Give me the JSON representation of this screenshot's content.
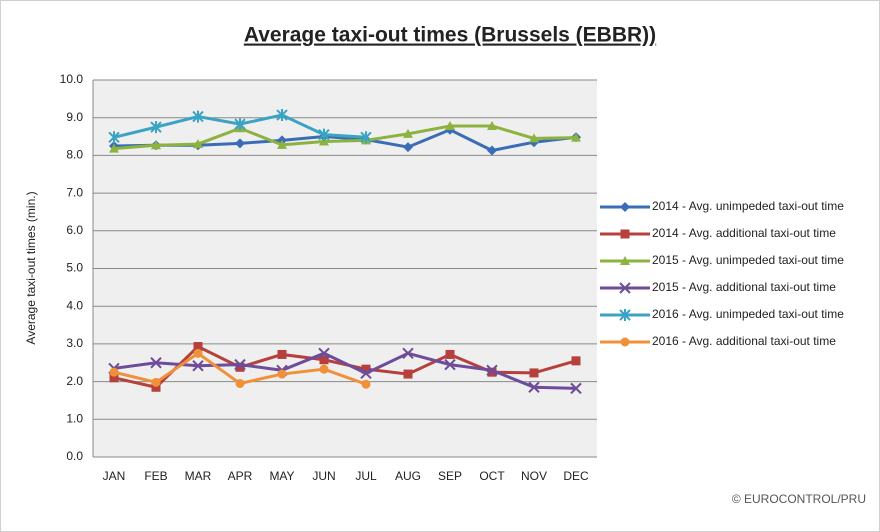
{
  "chart_data": {
    "type": "line",
    "title": "Average taxi-out times (Brussels (EBBR))",
    "y_label": "Average taxi-out times (min.)",
    "source": "© EUROCONTROL/PRU",
    "categories": [
      "JAN",
      "FEB",
      "MAR",
      "APR",
      "MAY",
      "JUN",
      "JUL",
      "AUG",
      "SEP",
      "OCT",
      "NOV",
      "DEC"
    ],
    "ylim": [
      0,
      10
    ],
    "yticks": [
      {
        "value": 0,
        "label": "0.0"
      },
      {
        "value": 1,
        "label": "1.0"
      },
      {
        "value": 2,
        "label": "2.0"
      },
      {
        "value": 3,
        "label": "3.0"
      },
      {
        "value": 4,
        "label": "4.0"
      },
      {
        "value": 5,
        "label": "5.0"
      },
      {
        "value": 6,
        "label": "6.0"
      },
      {
        "value": 7,
        "label": "7.0"
      },
      {
        "value": 8,
        "label": "8.0"
      },
      {
        "value": 9,
        "label": "9.0"
      },
      {
        "value": 10,
        "label": "10.0"
      }
    ],
    "grid": true,
    "legend": "right",
    "series": [
      {
        "name": "2014 - Avg. unimpeded taxi-out time",
        "color": "#3a6db5",
        "marker": "diamond",
        "values": [
          8.25,
          8.27,
          8.27,
          8.32,
          8.4,
          8.5,
          8.42,
          8.22,
          8.68,
          8.13,
          8.35,
          8.48
        ]
      },
      {
        "name": "2014 - Avg. additional taxi-out time",
        "color": "#b5403c",
        "marker": "square",
        "values": [
          2.1,
          1.85,
          2.93,
          2.38,
          2.72,
          2.58,
          2.33,
          2.2,
          2.72,
          2.25,
          2.23,
          2.55
        ]
      },
      {
        "name": "2015 - Avg. unimpeded taxi-out time",
        "color": "#8cb33f",
        "marker": "triangle",
        "values": [
          8.18,
          8.27,
          8.3,
          8.72,
          8.28,
          8.37,
          8.4,
          8.57,
          8.78,
          8.78,
          8.45,
          8.47
        ]
      },
      {
        "name": "2015 - Avg. additional taxi-out time",
        "color": "#6e4c9a",
        "marker": "x",
        "values": [
          2.35,
          2.5,
          2.42,
          2.45,
          2.3,
          2.75,
          2.22,
          2.75,
          2.45,
          2.3,
          1.85,
          1.82
        ]
      },
      {
        "name": "2016 - Avg. unimpeded taxi-out time",
        "color": "#3ba3c3",
        "marker": "star",
        "values": [
          8.48,
          8.75,
          9.03,
          8.83,
          9.07,
          8.55,
          8.48,
          null,
          null,
          null,
          null,
          null
        ]
      },
      {
        "name": "2016 - Avg. additional taxi-out time",
        "color": "#f0913a",
        "marker": "circle",
        "values": [
          2.25,
          1.98,
          2.75,
          1.95,
          2.2,
          2.33,
          1.93,
          null,
          null,
          null,
          null,
          null
        ]
      }
    ]
  }
}
